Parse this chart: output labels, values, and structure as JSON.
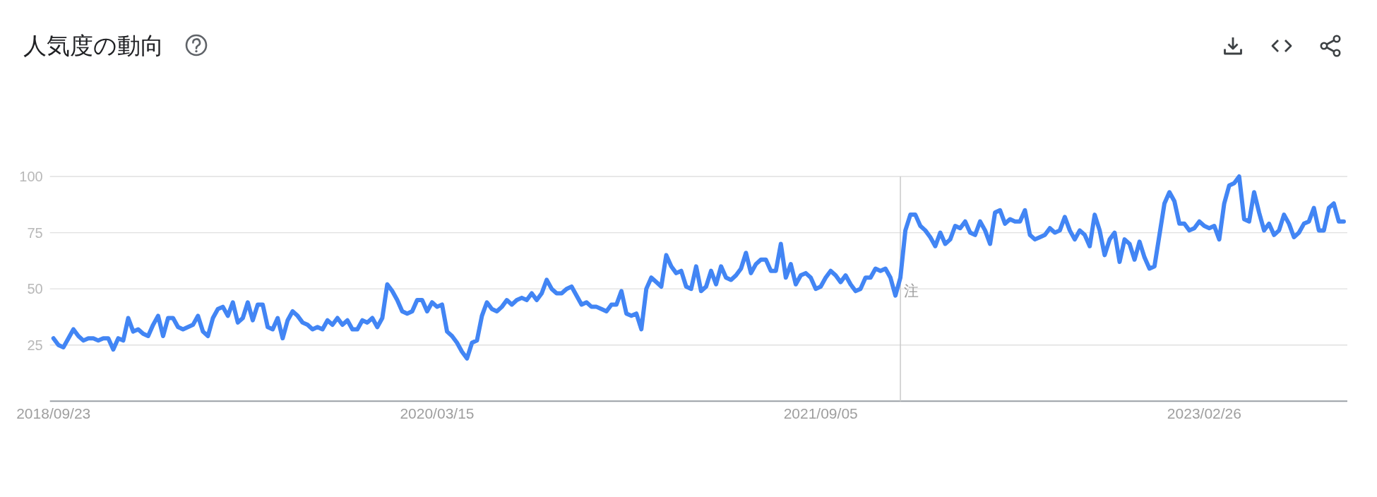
{
  "chart_data": {
    "type": "line",
    "title": "人気度の動向",
    "x": [
      "2018-09-23",
      "2018-09-30",
      "2018-10-07",
      "2018-10-14",
      "2018-10-21",
      "2018-10-28",
      "2018-11-04",
      "2018-11-11",
      "2018-11-18",
      "2018-11-25",
      "2018-12-02",
      "2018-12-09",
      "2018-12-16",
      "2018-12-23",
      "2018-12-30",
      "2019-01-06",
      "2019-01-13",
      "2019-01-20",
      "2019-01-27",
      "2019-02-03",
      "2019-02-10",
      "2019-02-17",
      "2019-02-24",
      "2019-03-03",
      "2019-03-10",
      "2019-03-17",
      "2019-03-24",
      "2019-03-31",
      "2019-04-07",
      "2019-04-14",
      "2019-04-21",
      "2019-04-28",
      "2019-05-05",
      "2019-05-12",
      "2019-05-19",
      "2019-05-26",
      "2019-06-02",
      "2019-06-09",
      "2019-06-16",
      "2019-06-23",
      "2019-06-30",
      "2019-07-07",
      "2019-07-14",
      "2019-07-21",
      "2019-07-28",
      "2019-08-04",
      "2019-08-11",
      "2019-08-18",
      "2019-08-25",
      "2019-09-01",
      "2019-09-08",
      "2019-09-15",
      "2019-09-22",
      "2019-09-29",
      "2019-10-06",
      "2019-10-13",
      "2019-10-20",
      "2019-10-27",
      "2019-11-03",
      "2019-11-10",
      "2019-11-17",
      "2019-11-24",
      "2019-12-01",
      "2019-12-08",
      "2019-12-15",
      "2019-12-22",
      "2019-12-29",
      "2020-01-05",
      "2020-01-12",
      "2020-01-19",
      "2020-01-26",
      "2020-02-02",
      "2020-02-09",
      "2020-02-16",
      "2020-02-23",
      "2020-03-01",
      "2020-03-08",
      "2020-03-15",
      "2020-03-22",
      "2020-03-29",
      "2020-04-05",
      "2020-04-12",
      "2020-04-19",
      "2020-04-26",
      "2020-05-03",
      "2020-05-10",
      "2020-05-17",
      "2020-05-24",
      "2020-05-31",
      "2020-06-07",
      "2020-06-14",
      "2020-06-21",
      "2020-06-28",
      "2020-07-05",
      "2020-07-12",
      "2020-07-19",
      "2020-07-26",
      "2020-08-02",
      "2020-08-09",
      "2020-08-16",
      "2020-08-23",
      "2020-08-30",
      "2020-09-06",
      "2020-09-13",
      "2020-09-20",
      "2020-09-27",
      "2020-10-04",
      "2020-10-11",
      "2020-10-18",
      "2020-10-25",
      "2020-11-01",
      "2020-11-08",
      "2020-11-15",
      "2020-11-22",
      "2020-11-29",
      "2020-12-06",
      "2020-12-13",
      "2020-12-20",
      "2020-12-27",
      "2021-01-03",
      "2021-01-10",
      "2021-01-17",
      "2021-01-24",
      "2021-01-31",
      "2021-02-07",
      "2021-02-14",
      "2021-02-21",
      "2021-02-28",
      "2021-03-07",
      "2021-03-14",
      "2021-03-21",
      "2021-03-28",
      "2021-04-04",
      "2021-04-11",
      "2021-04-18",
      "2021-04-25",
      "2021-05-02",
      "2021-05-09",
      "2021-05-16",
      "2021-05-23",
      "2021-05-30",
      "2021-06-06",
      "2021-06-13",
      "2021-06-20",
      "2021-06-27",
      "2021-07-04",
      "2021-07-11",
      "2021-07-18",
      "2021-07-25",
      "2021-08-01",
      "2021-08-08",
      "2021-08-15",
      "2021-08-22",
      "2021-08-29",
      "2021-09-05",
      "2021-09-12",
      "2021-09-19",
      "2021-09-26",
      "2021-10-03",
      "2021-10-10",
      "2021-10-17",
      "2021-10-24",
      "2021-10-31",
      "2021-11-07",
      "2021-11-14",
      "2021-11-21",
      "2021-11-28",
      "2021-12-05",
      "2021-12-12",
      "2021-12-19",
      "2021-12-26",
      "2022-01-02",
      "2022-01-09",
      "2022-01-16",
      "2022-01-23",
      "2022-01-30",
      "2022-02-06",
      "2022-02-13",
      "2022-02-20",
      "2022-02-27",
      "2022-03-06",
      "2022-03-13",
      "2022-03-20",
      "2022-03-27",
      "2022-04-03",
      "2022-04-10",
      "2022-04-17",
      "2022-04-24",
      "2022-05-01",
      "2022-05-08",
      "2022-05-15",
      "2022-05-22",
      "2022-05-29",
      "2022-06-05",
      "2022-06-12",
      "2022-06-19",
      "2022-06-26",
      "2022-07-03",
      "2022-07-10",
      "2022-07-17",
      "2022-07-24",
      "2022-07-31",
      "2022-08-07",
      "2022-08-14",
      "2022-08-21",
      "2022-08-28",
      "2022-09-04",
      "2022-09-11",
      "2022-09-18",
      "2022-09-25",
      "2022-10-02",
      "2022-10-09",
      "2022-10-16",
      "2022-10-23",
      "2022-10-30",
      "2022-11-06",
      "2022-11-13",
      "2022-11-20",
      "2022-11-27",
      "2022-12-04",
      "2022-12-11",
      "2022-12-18",
      "2022-12-25",
      "2023-01-01",
      "2023-01-08",
      "2023-01-15",
      "2023-01-22",
      "2023-01-29",
      "2023-02-05",
      "2023-02-12",
      "2023-02-19",
      "2023-02-26",
      "2023-03-05",
      "2023-03-12",
      "2023-03-19",
      "2023-03-26",
      "2023-04-02",
      "2023-04-09",
      "2023-04-16",
      "2023-04-23",
      "2023-04-30",
      "2023-05-07",
      "2023-05-14",
      "2023-05-21",
      "2023-05-28",
      "2023-06-04",
      "2023-06-11",
      "2023-06-18",
      "2023-06-25",
      "2023-07-02",
      "2023-07-09",
      "2023-07-16",
      "2023-07-23",
      "2023-07-30",
      "2023-08-06",
      "2023-08-13",
      "2023-08-20",
      "2023-08-27",
      "2023-09-03",
      "2023-09-10"
    ],
    "values": [
      28,
      25,
      24,
      28,
      32,
      29,
      27,
      28,
      28,
      27,
      28,
      28,
      23,
      28,
      27,
      37,
      31,
      32,
      30,
      29,
      34,
      38,
      29,
      37,
      37,
      33,
      32,
      33,
      34,
      38,
      31,
      29,
      37,
      41,
      42,
      38,
      44,
      35,
      37,
      44,
      36,
      43,
      43,
      33,
      32,
      37,
      28,
      36,
      40,
      38,
      35,
      34,
      32,
      33,
      32,
      36,
      34,
      37,
      34,
      36,
      32,
      32,
      36,
      35,
      37,
      33,
      37,
      52,
      49,
      45,
      40,
      39,
      40,
      45,
      45,
      40,
      44,
      42,
      43,
      31,
      29,
      26,
      22,
      19,
      26,
      27,
      38,
      44,
      41,
      40,
      42,
      45,
      43,
      45,
      46,
      45,
      48,
      45,
      48,
      54,
      50,
      48,
      48,
      50,
      51,
      47,
      43,
      44,
      42,
      42,
      41,
      40,
      43,
      43,
      49,
      39,
      38,
      39,
      32,
      50,
      55,
      53,
      51,
      65,
      60,
      57,
      58,
      51,
      50,
      60,
      49,
      51,
      58,
      52,
      60,
      55,
      54,
      56,
      59,
      66,
      57,
      61,
      63,
      63,
      58,
      58,
      70,
      55,
      61,
      52,
      56,
      57,
      55,
      50,
      51,
      55,
      58,
      56,
      53,
      56,
      52,
      49,
      50,
      55,
      55,
      59,
      58,
      59,
      55,
      47,
      55,
      76,
      83,
      83,
      78,
      76,
      73,
      69,
      75,
      70,
      72,
      78,
      77,
      80,
      75,
      74,
      80,
      76,
      70,
      84,
      85,
      79,
      81,
      80,
      80,
      85,
      74,
      72,
      73,
      74,
      77,
      75,
      76,
      82,
      76,
      72,
      76,
      74,
      69,
      83,
      76,
      65,
      72,
      75,
      62,
      72,
      70,
      63,
      71,
      64,
      59,
      60,
      74,
      88,
      93,
      89,
      79,
      79,
      76,
      77,
      80,
      78,
      77,
      78,
      72,
      88,
      96,
      97,
      100,
      81,
      80,
      93,
      84,
      76,
      79,
      74,
      76,
      83,
      79,
      73,
      75,
      79,
      80,
      86,
      76,
      76,
      86,
      88,
      80,
      80
    ],
    "color": "#4285f4",
    "xlim": [
      "2018-09-18",
      "2023-09-15"
    ],
    "xticks": [
      {
        "value": "2018-09-23",
        "label": "2018/09/23"
      },
      {
        "value": "2020-03-15",
        "label": "2020/03/15"
      },
      {
        "value": "2021-09-05",
        "label": "2021/09/05"
      },
      {
        "value": "2023-02-26",
        "label": "2023/02/26"
      }
    ],
    "ylim": [
      0,
      100
    ],
    "yticks": [
      25,
      50,
      75,
      100
    ],
    "grid": "y",
    "ref_lines": [
      {
        "axis": "x",
        "value": "2021-12-26",
        "label": "注",
        "color": "#cccccc"
      }
    ]
  }
}
